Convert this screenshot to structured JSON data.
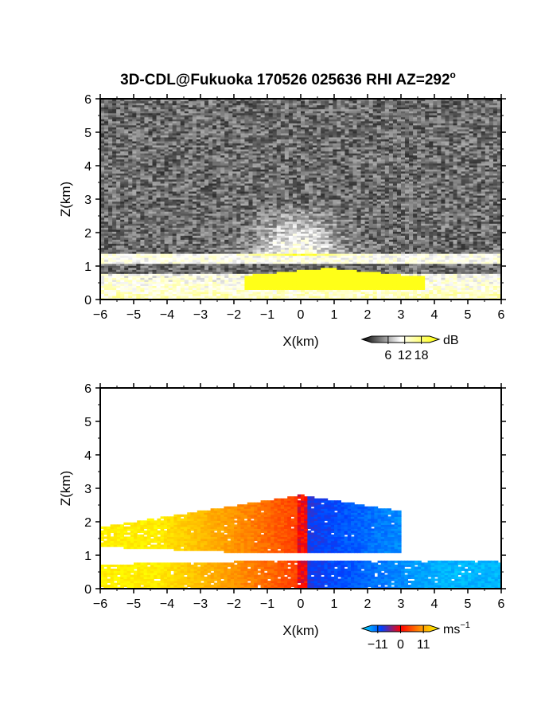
{
  "title": "3D-CDL@Fukuoka 170526 025636 RHI AZ=292",
  "title_superscript": "o",
  "chart_data": [
    {
      "type": "heatmap",
      "name": "snr",
      "xlabel": "X(km)",
      "ylabel": "Z(km)",
      "xlim": [
        -6,
        6
      ],
      "ylim": [
        0,
        6
      ],
      "xticks": [
        "-6",
        "-5",
        "-4",
        "-3",
        "-2",
        "-1",
        "0",
        "1",
        "2",
        "3",
        "4",
        "5",
        "6"
      ],
      "yticks": [
        "0",
        "1",
        "2",
        "3",
        "4",
        "5",
        "6"
      ],
      "colorbar": {
        "unit": "dB",
        "tick_labels": [
          "6",
          "12",
          "18"
        ],
        "tick_values": [
          6,
          12,
          18
        ],
        "range": [
          0,
          21
        ],
        "colors": [
          "#000000",
          "#ffffff",
          "#ffff00"
        ]
      },
      "features": {
        "aerosol_layer_top_km": 0.8,
        "elevated_layer_km": [
          1.1,
          1.4
        ],
        "strong_echo_x_km": [
          -1.7,
          3.7
        ],
        "strong_echo_top_km": 0.95,
        "strong_echo_db": 18
      }
    },
    {
      "type": "heatmap",
      "name": "radial-velocity",
      "xlabel": "X(km)",
      "ylabel": "Z(km)",
      "xlim": [
        -6,
        6
      ],
      "ylim": [
        0,
        6
      ],
      "xticks": [
        "-6",
        "-5",
        "-4",
        "-3",
        "-2",
        "-1",
        "0",
        "1",
        "2",
        "3",
        "4",
        "5",
        "6"
      ],
      "yticks": [
        "0",
        "1",
        "2",
        "3",
        "4",
        "5",
        "6"
      ],
      "colorbar": {
        "unit": "ms",
        "unit_superscript": "-1",
        "tick_labels": [
          "-11",
          "0",
          "11"
        ],
        "tick_values": [
          -11,
          0,
          11
        ],
        "range": [
          -14,
          14
        ],
        "colors": [
          "#00e5ff",
          "#0040ff",
          "#ff0000",
          "#ff8c00",
          "#ffff00"
        ]
      },
      "features": {
        "lower_layer_km": [
          0,
          0.85
        ],
        "upper_layer_km": [
          1.1,
          2.8
        ],
        "lower_layer_x_km": [
          -6,
          6
        ],
        "upper_layer_x_km": [
          -6,
          3
        ]
      }
    }
  ]
}
